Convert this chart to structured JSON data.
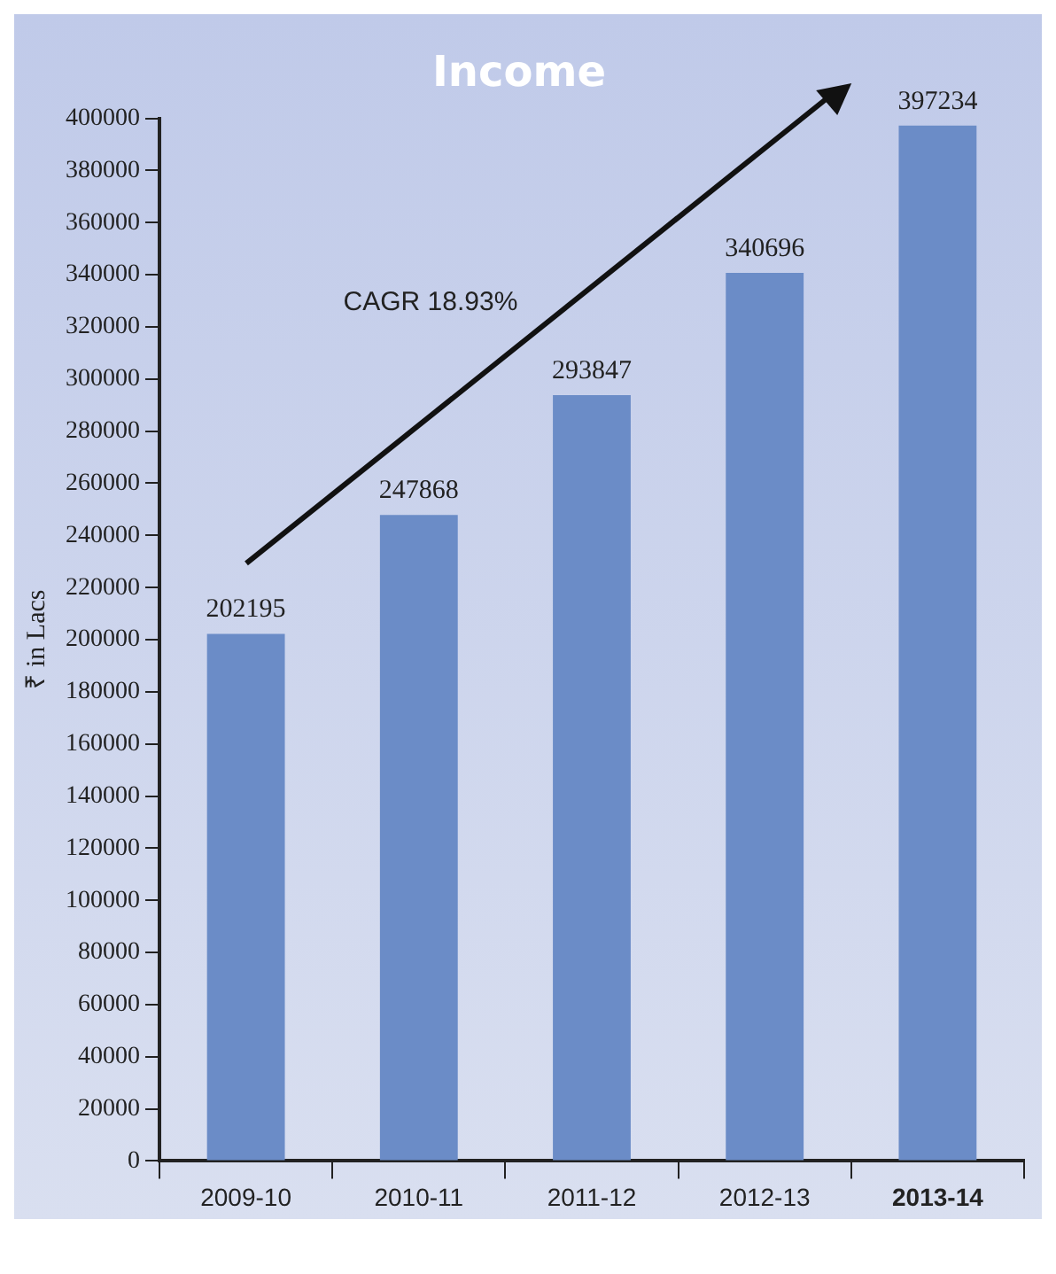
{
  "chart_data": {
    "type": "bar",
    "title": "Income",
    "ylabel": "₹ in Lacs",
    "categories": [
      "2009-10",
      "2010-11",
      "2011-12",
      "2012-13",
      "2013-14"
    ],
    "values": [
      202195,
      247868,
      293847,
      340696,
      397234
    ],
    "color": "#6b8cc7",
    "ylim": [
      0,
      400000
    ],
    "yticks": [
      0,
      20000,
      40000,
      60000,
      80000,
      100000,
      120000,
      140000,
      160000,
      180000,
      200000,
      220000,
      240000,
      260000,
      280000,
      300000,
      320000,
      340000,
      360000,
      380000,
      400000
    ],
    "grid": false,
    "legend": false,
    "data_labels": true,
    "annotations": [
      "CAGR 18.93%"
    ]
  }
}
